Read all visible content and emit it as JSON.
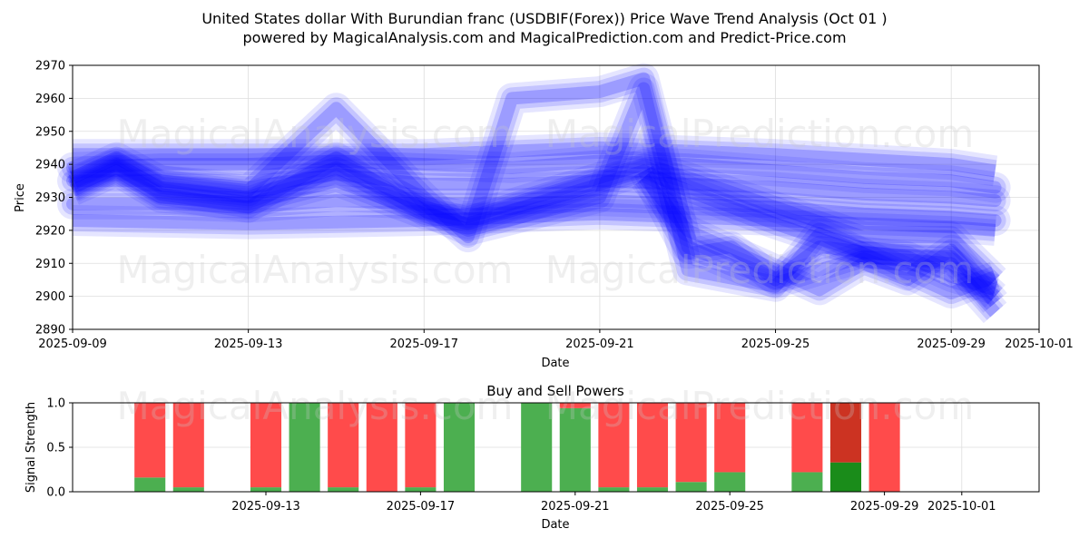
{
  "figure": {
    "title_line1": "United States dollar With Burundian franc (USDBIF(Forex)) Price Wave Trend Analysis (Oct 01 )",
    "title_line2": "powered by MagicalAnalysis.com and MagicalPrediction.com and Predict-Price.com",
    "watermarks": [
      "MagicalAnalysis.com",
      "MagicalPrediction.com"
    ],
    "colors": {
      "wave": "#0000ff",
      "buy": "#4caf50",
      "sell": "#ff4b4b",
      "buy_dark": "#1a8c1a",
      "sell_dark": "#cc3322"
    }
  },
  "chart_data": [
    {
      "type": "area",
      "title": "",
      "xlabel": "Date",
      "ylabel": "Price",
      "xlim": [
        "2025-09-09",
        "2025-10-01"
      ],
      "ylim": [
        2890,
        2970
      ],
      "x_ticks": [
        "2025-09-09",
        "2025-09-13",
        "2025-09-17",
        "2025-09-21",
        "2025-09-25",
        "2025-09-29",
        "2025-10-01"
      ],
      "y_ticks": [
        2890,
        2900,
        2910,
        2920,
        2930,
        2940,
        2950,
        2960,
        2970
      ],
      "grid": true,
      "series": [
        {
          "x": [
            "2025-09-09",
            "2025-09-11",
            "2025-09-13",
            "2025-09-15",
            "2025-09-17",
            "2025-09-19",
            "2025-09-21",
            "2025-09-23",
            "2025-09-25",
            "2025-09-27",
            "2025-09-29",
            "2025-09-30"
          ],
          "y": [
            2935,
            2935,
            2933,
            2937,
            2934,
            2934,
            2935,
            2934,
            2933,
            2931,
            2930,
            2929
          ]
        },
        {
          "x": [
            "2025-09-09",
            "2025-09-11",
            "2025-09-13",
            "2025-09-15",
            "2025-09-17",
            "2025-09-19",
            "2025-09-21",
            "2025-09-23",
            "2025-09-25",
            "2025-09-27",
            "2025-09-29",
            "2025-09-30"
          ],
          "y": [
            2939,
            2940,
            2940,
            2941,
            2940,
            2939,
            2941,
            2940,
            2938,
            2936,
            2935,
            2933
          ]
        },
        {
          "x": [
            "2025-09-09",
            "2025-09-11",
            "2025-09-13",
            "2025-09-15",
            "2025-09-17",
            "2025-09-19",
            "2025-09-21",
            "2025-09-23",
            "2025-09-25",
            "2025-09-27",
            "2025-09-29",
            "2025-09-30"
          ],
          "y": [
            2928,
            2928,
            2927,
            2929,
            2928,
            2928,
            2929,
            2928,
            2927,
            2925,
            2924,
            2923
          ]
        },
        {
          "x": [
            "2025-09-09",
            "2025-09-10",
            "2025-09-11",
            "2025-09-13",
            "2025-09-15",
            "2025-09-17",
            "2025-09-18",
            "2025-09-21",
            "2025-09-22",
            "2025-09-23",
            "2025-09-25",
            "2025-09-27",
            "2025-09-29",
            "2025-09-30"
          ],
          "y": [
            2934,
            2940,
            2933,
            2930,
            2939,
            2927,
            2924,
            2936,
            2940,
            2936,
            2927,
            2918,
            2918,
            2905
          ]
        },
        {
          "x": [
            "2025-09-09",
            "2025-09-10",
            "2025-09-11",
            "2025-09-13",
            "2025-09-15",
            "2025-09-17",
            "2025-09-18",
            "2025-09-21",
            "2025-09-22",
            "2025-09-23",
            "2025-09-25",
            "2025-09-27",
            "2025-09-29",
            "2025-09-30"
          ],
          "y": [
            2932,
            2938,
            2930,
            2928,
            2935,
            2925,
            2922,
            2934,
            2938,
            2932,
            2922,
            2913,
            2912,
            2900
          ]
        },
        {
          "x": [
            "2025-09-09",
            "2025-09-10",
            "2025-09-11",
            "2025-09-13",
            "2025-09-15",
            "2025-09-17",
            "2025-09-18",
            "2025-09-19",
            "2025-09-21",
            "2025-09-22",
            "2025-09-23",
            "2025-09-25",
            "2025-09-27",
            "2025-09-29",
            "2025-09-30"
          ],
          "y": [
            2936,
            2942,
            2935,
            2932,
            2957,
            2930,
            2918,
            2960,
            2962,
            2966,
            2915,
            2904,
            2912,
            2910,
            2895
          ]
        },
        {
          "x": [
            "2025-09-09",
            "2025-09-10",
            "2025-09-11",
            "2025-09-13",
            "2025-09-15",
            "2025-09-17",
            "2025-09-18",
            "2025-09-21",
            "2025-09-22",
            "2025-09-23",
            "2025-09-25",
            "2025-09-26",
            "2025-09-29",
            "2025-09-30"
          ],
          "y": [
            2933,
            2939,
            2931,
            2927,
            2942,
            2926,
            2920,
            2930,
            2963,
            2908,
            2903,
            2919,
            2901,
            2906
          ]
        },
        {
          "x": [
            "2025-09-09",
            "2025-09-13",
            "2025-09-17",
            "2025-09-21",
            "2025-09-25",
            "2025-09-29",
            "2025-09-30"
          ],
          "y": [
            2923,
            2922,
            2923,
            2925,
            2923,
            2921,
            2920
          ]
        },
        {
          "x": [
            "2025-09-09",
            "2025-09-13",
            "2025-09-17",
            "2025-09-21",
            "2025-09-25",
            "2025-09-29",
            "2025-09-30"
          ],
          "y": [
            2943,
            2943,
            2943,
            2945,
            2943,
            2940,
            2938
          ]
        },
        {
          "x": [
            "2025-09-22",
            "2025-09-23",
            "2025-09-24",
            "2025-09-25",
            "2025-09-26",
            "2025-09-28",
            "2025-09-29",
            "2025-09-30"
          ],
          "y": [
            2938,
            2913,
            2915,
            2905,
            2915,
            2912,
            2906,
            2902
          ]
        },
        {
          "x": [
            "2025-09-22",
            "2025-09-23",
            "2025-09-25",
            "2025-09-26",
            "2025-09-27",
            "2025-09-28",
            "2025-09-29",
            "2025-09-30"
          ],
          "y": [
            2936,
            2920,
            2908,
            2902,
            2910,
            2905,
            2914,
            2898
          ]
        }
      ]
    },
    {
      "type": "bar",
      "title": "Buy and Sell Powers",
      "xlabel": "Date",
      "ylabel": "Signal Strength",
      "ylim": [
        0,
        1
      ],
      "y_ticks": [
        0.0,
        0.5,
        1.0
      ],
      "y_tick_labels": [
        "0.0",
        "0.5",
        "1.0"
      ],
      "x_ticks": [
        "2025-09-13",
        "2025-09-17",
        "2025-09-21",
        "2025-09-25",
        "2025-09-29",
        "2025-10-01"
      ],
      "grid": true,
      "categories": [
        "2025-09-10",
        "2025-09-11",
        "2025-09-13",
        "2025-09-14",
        "2025-09-15",
        "2025-09-16",
        "2025-09-17",
        "2025-09-18",
        "2025-09-20",
        "2025-09-21",
        "2025-09-22",
        "2025-09-23",
        "2025-09-24",
        "2025-09-25",
        "2025-09-27",
        "2025-09-28",
        "2025-09-29"
      ],
      "series": [
        {
          "role": "buy",
          "values": [
            0.16,
            0.05,
            0.05,
            1.0,
            0.05,
            0.0,
            0.05,
            1.0,
            1.0,
            0.94,
            0.05,
            0.05,
            0.11,
            0.22,
            0.22,
            0.33,
            0.0
          ]
        },
        {
          "role": "sell",
          "values": [
            0.84,
            0.95,
            0.95,
            0.0,
            0.95,
            1.0,
            0.95,
            0.0,
            0.0,
            0.06,
            0.95,
            0.95,
            0.89,
            0.78,
            0.78,
            0.67,
            1.0
          ]
        }
      ],
      "dark_categories": [
        "2025-09-28"
      ]
    }
  ]
}
